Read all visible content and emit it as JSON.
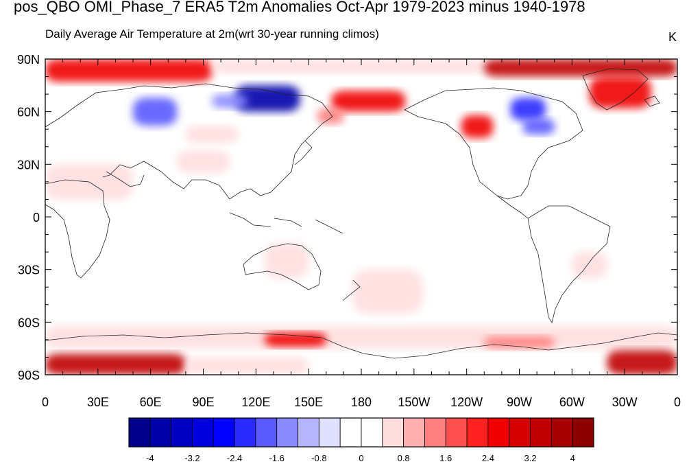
{
  "title": "pos_QBO OMI_Phase_7 ERA5 T2m Anomalies Oct-Apr 1979-2023 minus 1940-1978",
  "left_subtitle": "Daily Average Air Temperature at 2m",
  "center_subtitle": "(wrt 30-year running climos)",
  "units": "K",
  "map": {
    "projection": "cylindrical-equidistant",
    "lon_range": [
      0,
      360
    ],
    "lat_range": [
      -90,
      90
    ],
    "lon_ticks": [
      {
        "v": 0,
        "label": "0"
      },
      {
        "v": 30,
        "label": "30E"
      },
      {
        "v": 60,
        "label": "60E"
      },
      {
        "v": 90,
        "label": "90E"
      },
      {
        "v": 120,
        "label": "120E"
      },
      {
        "v": 150,
        "label": "150E"
      },
      {
        "v": 180,
        "label": "180"
      },
      {
        "v": 210,
        "label": "150W"
      },
      {
        "v": 240,
        "label": "120W"
      },
      {
        "v": 270,
        "label": "90W"
      },
      {
        "v": 300,
        "label": "60W"
      },
      {
        "v": 330,
        "label": "30W"
      },
      {
        "v": 360,
        "label": "0"
      }
    ],
    "lat_ticks": [
      {
        "v": 90,
        "label": "90N"
      },
      {
        "v": 60,
        "label": "60N"
      },
      {
        "v": 30,
        "label": "30N"
      },
      {
        "v": 0,
        "label": "0"
      },
      {
        "v": -30,
        "label": "30S"
      },
      {
        "v": -60,
        "label": "60S"
      },
      {
        "v": -90,
        "label": "90S"
      }
    ],
    "anomaly_regions": [
      {
        "name": "arctic-eurasia-warm",
        "lon": [
          0,
          95
        ],
        "lat": [
          77,
          90
        ],
        "value": 2.4
      },
      {
        "name": "arctic-siberia-warm",
        "lon": [
          95,
          250
        ],
        "lat": [
          82,
          90
        ],
        "value": 0.8
      },
      {
        "name": "arctic-canada-warm",
        "lon": [
          250,
          360
        ],
        "lat": [
          80,
          90
        ],
        "value": 3.2
      },
      {
        "name": "greenland-warm",
        "lon": [
          310,
          345
        ],
        "lat": [
          62,
          80
        ],
        "value": 2.4
      },
      {
        "name": "eurasia-cold-west",
        "lon": [
          50,
          75
        ],
        "lat": [
          52,
          68
        ],
        "value": -2.0
      },
      {
        "name": "siberia-cold-core",
        "lon": [
          108,
          145
        ],
        "lat": [
          60,
          75
        ],
        "value": -4.0
      },
      {
        "name": "west-siberia-cold",
        "lon": [
          95,
          115
        ],
        "lat": [
          62,
          70
        ],
        "value": -1.2
      },
      {
        "name": "east-siberia-warm",
        "lon": [
          163,
          205
        ],
        "lat": [
          60,
          72
        ],
        "value": 2.4
      },
      {
        "name": "kamchatka-warm",
        "lon": [
          155,
          170
        ],
        "lat": [
          53,
          62
        ],
        "value": 1.6
      },
      {
        "name": "hudson-cold",
        "lon": [
          265,
          285
        ],
        "lat": [
          55,
          68
        ],
        "value": -2.4
      },
      {
        "name": "great-lakes-cold",
        "lon": [
          272,
          290
        ],
        "lat": [
          47,
          56
        ],
        "value": -1.6
      },
      {
        "name": "western-canada-warm",
        "lon": [
          237,
          255
        ],
        "lat": [
          45,
          58
        ],
        "value": 2.4
      },
      {
        "name": "central-asia-warm",
        "lon": [
          80,
          110
        ],
        "lat": [
          42,
          52
        ],
        "value": 0.8
      },
      {
        "name": "tibet-warm",
        "lon": [
          75,
          105
        ],
        "lat": [
          25,
          38
        ],
        "value": 0.8
      },
      {
        "name": "sahara-warm",
        "lon": [
          0,
          50
        ],
        "lat": [
          10,
          30
        ],
        "value": 0.4
      },
      {
        "name": "australia-warm",
        "lon": [
          125,
          150
        ],
        "lat": [
          -35,
          -15
        ],
        "value": 0.8
      },
      {
        "name": "south-pacific-warm",
        "lon": [
          175,
          215
        ],
        "lat": [
          -55,
          -30
        ],
        "value": 0.8
      },
      {
        "name": "south-america-warm",
        "lon": [
          300,
          320
        ],
        "lat": [
          -35,
          -20
        ],
        "value": 0.8
      },
      {
        "name": "southern-ocean-warm",
        "lon": [
          0,
          360
        ],
        "lat": [
          -75,
          -62
        ],
        "value": 0.8
      },
      {
        "name": "southern-ocean-core",
        "lon": [
          125,
          160
        ],
        "lat": [
          -74,
          -66
        ],
        "value": 2.4
      },
      {
        "name": "weddell-warm",
        "lon": [
          250,
          290
        ],
        "lat": [
          -75,
          -68
        ],
        "value": 1.6
      },
      {
        "name": "antarctic-west-warm",
        "lon": [
          0,
          80
        ],
        "lat": [
          -90,
          -78
        ],
        "value": 3.2
      },
      {
        "name": "antarctic-east-warm",
        "lon": [
          320,
          360
        ],
        "lat": [
          -90,
          -76
        ],
        "value": 3.2
      },
      {
        "name": "antarctic-interior-warm",
        "lon": [
          80,
          150
        ],
        "lat": [
          -90,
          -80
        ],
        "value": 0.8
      }
    ]
  },
  "colorbar": {
    "colors": [
      "#00008c",
      "#0000a8",
      "#0000c4",
      "#0000de",
      "#0000ff",
      "#2a2aff",
      "#5a5aff",
      "#8a8aff",
      "#b4b4ff",
      "#e0e0ff",
      "#ffffff",
      "#ffffff",
      "#ffdede",
      "#ffb0b0",
      "#ff8080",
      "#ff5050",
      "#ff2020",
      "#f00000",
      "#d80000",
      "#c00000",
      "#a80000",
      "#8c0000"
    ],
    "labels": [
      "-4",
      "-3.2",
      "-2.4",
      "-1.6",
      "-0.8",
      "0",
      "0.8",
      "1.6",
      "2.4",
      "3.2",
      "4"
    ]
  }
}
